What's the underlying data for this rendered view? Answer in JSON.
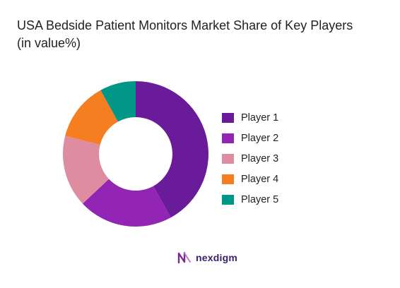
{
  "title": {
    "line1": "USA Bedside Patient Monitors Market Share of Key Players",
    "line2": "(in value%)"
  },
  "brand": {
    "name": "nexdigm",
    "logo_icon": "nexdigm-logo-icon",
    "colors": [
      "#7a2a8e",
      "#3a1f6e"
    ]
  },
  "chart_data": {
    "type": "donut",
    "title": "USA Bedside Patient Monitors Market Share of Key Players (in value%)",
    "categories": [
      "Player 1",
      "Player 2",
      "Player 3",
      "Player 4",
      "Player 5"
    ],
    "values": [
      42,
      21,
      16,
      13,
      8
    ],
    "unit": "%",
    "colors": [
      "#6a1b9a",
      "#9225b4",
      "#de8ca0",
      "#f47e20",
      "#009688"
    ],
    "legend_position": "right",
    "start_angle": "top, clockwise"
  }
}
